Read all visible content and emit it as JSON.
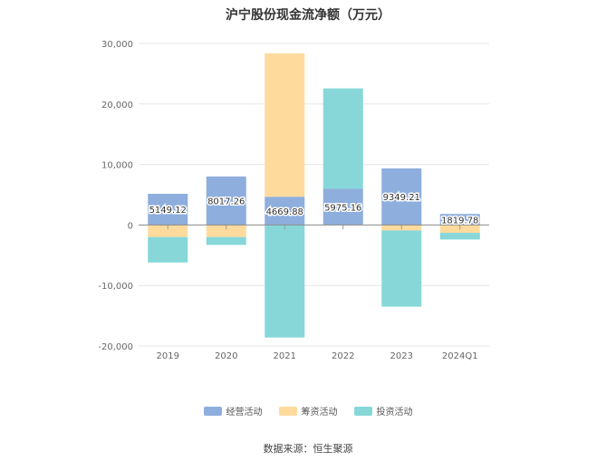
{
  "chart_data": {
    "type": "bar",
    "stacked": true,
    "title": "沪宁股份现金流净额（万元）",
    "categories": [
      "2019",
      "2020",
      "2021",
      "2022",
      "2023",
      "2024Q1"
    ],
    "series": [
      {
        "name": "经营活动",
        "color": "#8eaedd",
        "values": [
          5149.12,
          8017.26,
          4669.88,
          5975.16,
          9349.21,
          1819.78
        ]
      },
      {
        "name": "筹资活动",
        "color": "#fedb9d",
        "values": [
          -2000,
          -2000,
          23700,
          0,
          -900,
          -1300
        ]
      },
      {
        "name": "投资活动",
        "color": "#87d7d9",
        "values": [
          -4200,
          -1300,
          -18600,
          16600,
          -12600,
          -1100
        ]
      }
    ],
    "data_labels": [
      "5149.12",
      "8017.26",
      "4669.88",
      "5975.16",
      "9349.21",
      "1819.78"
    ],
    "ylim": [
      -20000,
      30000
    ],
    "yticks": [
      30000,
      20000,
      10000,
      0,
      -10000,
      -20000
    ],
    "ytick_labels": [
      "30,000",
      "20,000",
      "10,000",
      "0",
      "-10,000",
      "-20,000"
    ],
    "grid": true,
    "legend_position": "bottom"
  },
  "source_text": "数据来源：恒生聚源"
}
